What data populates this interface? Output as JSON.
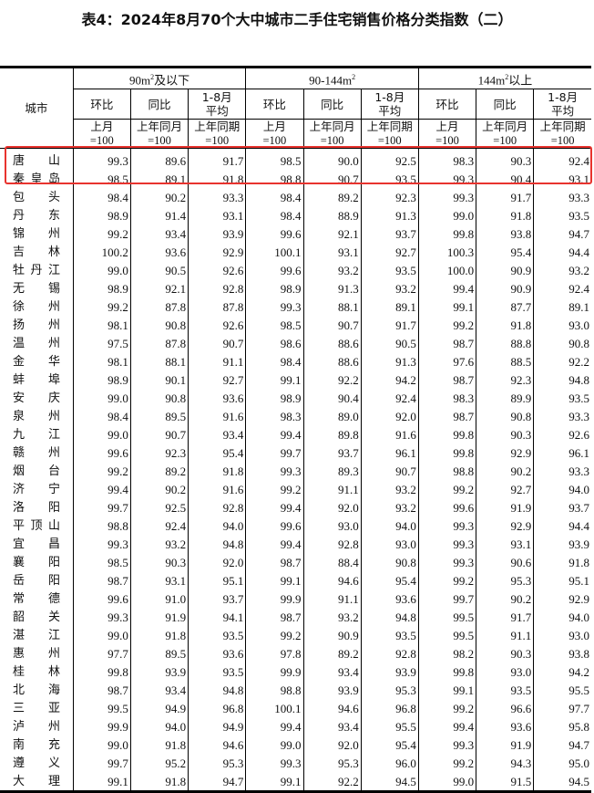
{
  "title": "表4：2024年8月70个大中城市二手住宅销售价格分类指数（二）",
  "highlight_color": "#e8332e",
  "header": {
    "city": "城市",
    "groups": [
      {
        "pre": "90m",
        "sup": "2",
        "post": "及以下"
      },
      {
        "pre": "90-144m",
        "sup": "2",
        "post": ""
      },
      {
        "pre": "144m",
        "sup": "2",
        "post": "以上"
      }
    ],
    "sub": [
      {
        "top": "环比",
        "base1": "上月",
        "base2": "=100"
      },
      {
        "top": "同比",
        "base1": "上年同月",
        "base2": "=100"
      },
      {
        "top": "1-8月平均",
        "base1": "上年同期",
        "base2": "=100"
      }
    ]
  },
  "rows": [
    {
      "city": "唐山",
      "v": [
        "99.3",
        "89.6",
        "91.7",
        "98.5",
        "90.0",
        "92.5",
        "98.3",
        "90.3",
        "92.4"
      ]
    },
    {
      "city": "秦皇岛",
      "v": [
        "98.5",
        "89.1",
        "91.8",
        "98.8",
        "90.7",
        "93.5",
        "99.3",
        "90.4",
        "93.1"
      ]
    },
    {
      "city": "包头",
      "v": [
        "98.4",
        "90.2",
        "93.3",
        "98.4",
        "89.2",
        "92.3",
        "99.3",
        "91.7",
        "93.3"
      ]
    },
    {
      "city": "丹东",
      "v": [
        "98.9",
        "91.4",
        "93.1",
        "98.4",
        "88.9",
        "91.3",
        "99.0",
        "91.8",
        "93.5"
      ]
    },
    {
      "city": "锦州",
      "v": [
        "99.2",
        "93.4",
        "93.9",
        "99.6",
        "92.1",
        "93.7",
        "99.8",
        "93.8",
        "94.7"
      ]
    },
    {
      "city": "吉林",
      "v": [
        "100.2",
        "93.6",
        "92.9",
        "100.1",
        "93.1",
        "92.7",
        "100.3",
        "95.4",
        "94.4"
      ]
    },
    {
      "city": "牡丹江",
      "v": [
        "99.0",
        "90.5",
        "92.6",
        "99.6",
        "93.2",
        "93.5",
        "100.0",
        "90.9",
        "93.2"
      ]
    },
    {
      "city": "无锡",
      "v": [
        "98.9",
        "92.1",
        "92.8",
        "98.9",
        "91.3",
        "93.2",
        "99.4",
        "90.9",
        "92.4"
      ]
    },
    {
      "city": "徐州",
      "v": [
        "99.2",
        "87.8",
        "87.8",
        "99.3",
        "88.1",
        "89.1",
        "99.1",
        "87.7",
        "89.1"
      ]
    },
    {
      "city": "扬州",
      "v": [
        "98.1",
        "90.8",
        "92.6",
        "98.5",
        "90.7",
        "91.7",
        "99.2",
        "91.8",
        "93.0"
      ]
    },
    {
      "city": "温州",
      "v": [
        "97.5",
        "87.8",
        "90.7",
        "98.6",
        "88.6",
        "90.5",
        "98.7",
        "88.8",
        "90.8"
      ]
    },
    {
      "city": "金华",
      "v": [
        "98.1",
        "88.1",
        "91.1",
        "98.4",
        "88.6",
        "91.3",
        "97.6",
        "88.5",
        "92.2"
      ]
    },
    {
      "city": "蚌埠",
      "v": [
        "98.9",
        "90.1",
        "92.7",
        "99.1",
        "92.2",
        "94.2",
        "98.7",
        "92.3",
        "94.8"
      ]
    },
    {
      "city": "安庆",
      "v": [
        "99.0",
        "90.8",
        "93.6",
        "98.9",
        "90.4",
        "92.4",
        "98.3",
        "89.9",
        "93.5"
      ]
    },
    {
      "city": "泉州",
      "v": [
        "98.4",
        "89.5",
        "91.6",
        "98.3",
        "89.0",
        "92.0",
        "98.7",
        "90.8",
        "93.3"
      ]
    },
    {
      "city": "九江",
      "v": [
        "99.0",
        "90.7",
        "93.4",
        "99.4",
        "89.8",
        "91.6",
        "99.8",
        "90.3",
        "92.6"
      ]
    },
    {
      "city": "赣州",
      "v": [
        "99.6",
        "92.3",
        "95.4",
        "99.7",
        "93.7",
        "96.1",
        "99.8",
        "92.9",
        "96.1"
      ]
    },
    {
      "city": "烟台",
      "v": [
        "99.2",
        "89.2",
        "91.8",
        "99.3",
        "89.3",
        "90.7",
        "98.8",
        "90.2",
        "93.3"
      ]
    },
    {
      "city": "济宁",
      "v": [
        "99.4",
        "90.2",
        "91.6",
        "99.2",
        "91.1",
        "93.2",
        "99.2",
        "92.7",
        "94.0"
      ]
    },
    {
      "city": "洛阳",
      "v": [
        "99.7",
        "92.5",
        "92.8",
        "99.4",
        "92.0",
        "93.2",
        "99.6",
        "91.9",
        "93.7"
      ]
    },
    {
      "city": "平顶山",
      "v": [
        "98.8",
        "92.4",
        "94.0",
        "99.6",
        "93.0",
        "94.0",
        "99.3",
        "92.9",
        "94.4"
      ]
    },
    {
      "city": "宜昌",
      "v": [
        "99.3",
        "93.2",
        "94.8",
        "99.4",
        "92.8",
        "93.0",
        "99.3",
        "93.1",
        "93.9"
      ]
    },
    {
      "city": "襄阳",
      "v": [
        "98.5",
        "90.3",
        "92.0",
        "98.7",
        "88.4",
        "90.8",
        "99.3",
        "90.6",
        "91.8"
      ]
    },
    {
      "city": "岳阳",
      "v": [
        "98.7",
        "93.1",
        "95.1",
        "99.1",
        "94.6",
        "95.4",
        "99.2",
        "95.3",
        "95.1"
      ]
    },
    {
      "city": "常德",
      "v": [
        "99.6",
        "91.0",
        "93.7",
        "99.9",
        "91.1",
        "93.6",
        "99.7",
        "90.2",
        "92.9"
      ]
    },
    {
      "city": "韶关",
      "v": [
        "99.3",
        "91.9",
        "94.1",
        "98.7",
        "93.2",
        "94.8",
        "99.5",
        "91.7",
        "94.0"
      ]
    },
    {
      "city": "湛江",
      "v": [
        "99.0",
        "91.8",
        "93.5",
        "99.2",
        "90.9",
        "93.5",
        "99.5",
        "91.1",
        "93.0"
      ]
    },
    {
      "city": "惠州",
      "v": [
        "97.7",
        "89.5",
        "93.6",
        "97.8",
        "89.2",
        "92.8",
        "98.2",
        "90.3",
        "93.8"
      ]
    },
    {
      "city": "桂林",
      "v": [
        "99.8",
        "93.9",
        "93.5",
        "99.9",
        "93.4",
        "93.9",
        "99.8",
        "93.0",
        "94.2"
      ]
    },
    {
      "city": "北海",
      "v": [
        "98.7",
        "93.4",
        "94.8",
        "98.8",
        "93.9",
        "95.3",
        "99.1",
        "93.5",
        "95.5"
      ]
    },
    {
      "city": "三亚",
      "v": [
        "99.5",
        "94.9",
        "96.8",
        "100.1",
        "94.6",
        "96.8",
        "99.2",
        "96.6",
        "97.7"
      ]
    },
    {
      "city": "泸州",
      "v": [
        "99.9",
        "94.0",
        "94.9",
        "99.4",
        "93.4",
        "95.5",
        "99.4",
        "93.6",
        "95.8"
      ]
    },
    {
      "city": "南充",
      "v": [
        "99.0",
        "91.8",
        "94.6",
        "99.0",
        "92.0",
        "95.4",
        "99.3",
        "91.9",
        "94.7"
      ]
    },
    {
      "city": "遵义",
      "v": [
        "99.7",
        "95.2",
        "95.3",
        "99.3",
        "95.3",
        "96.0",
        "99.2",
        "94.3",
        "95.0"
      ]
    },
    {
      "city": "大理",
      "v": [
        "99.1",
        "91.8",
        "94.7",
        "99.1",
        "92.2",
        "94.5",
        "99.0",
        "91.5",
        "94.5"
      ]
    }
  ]
}
